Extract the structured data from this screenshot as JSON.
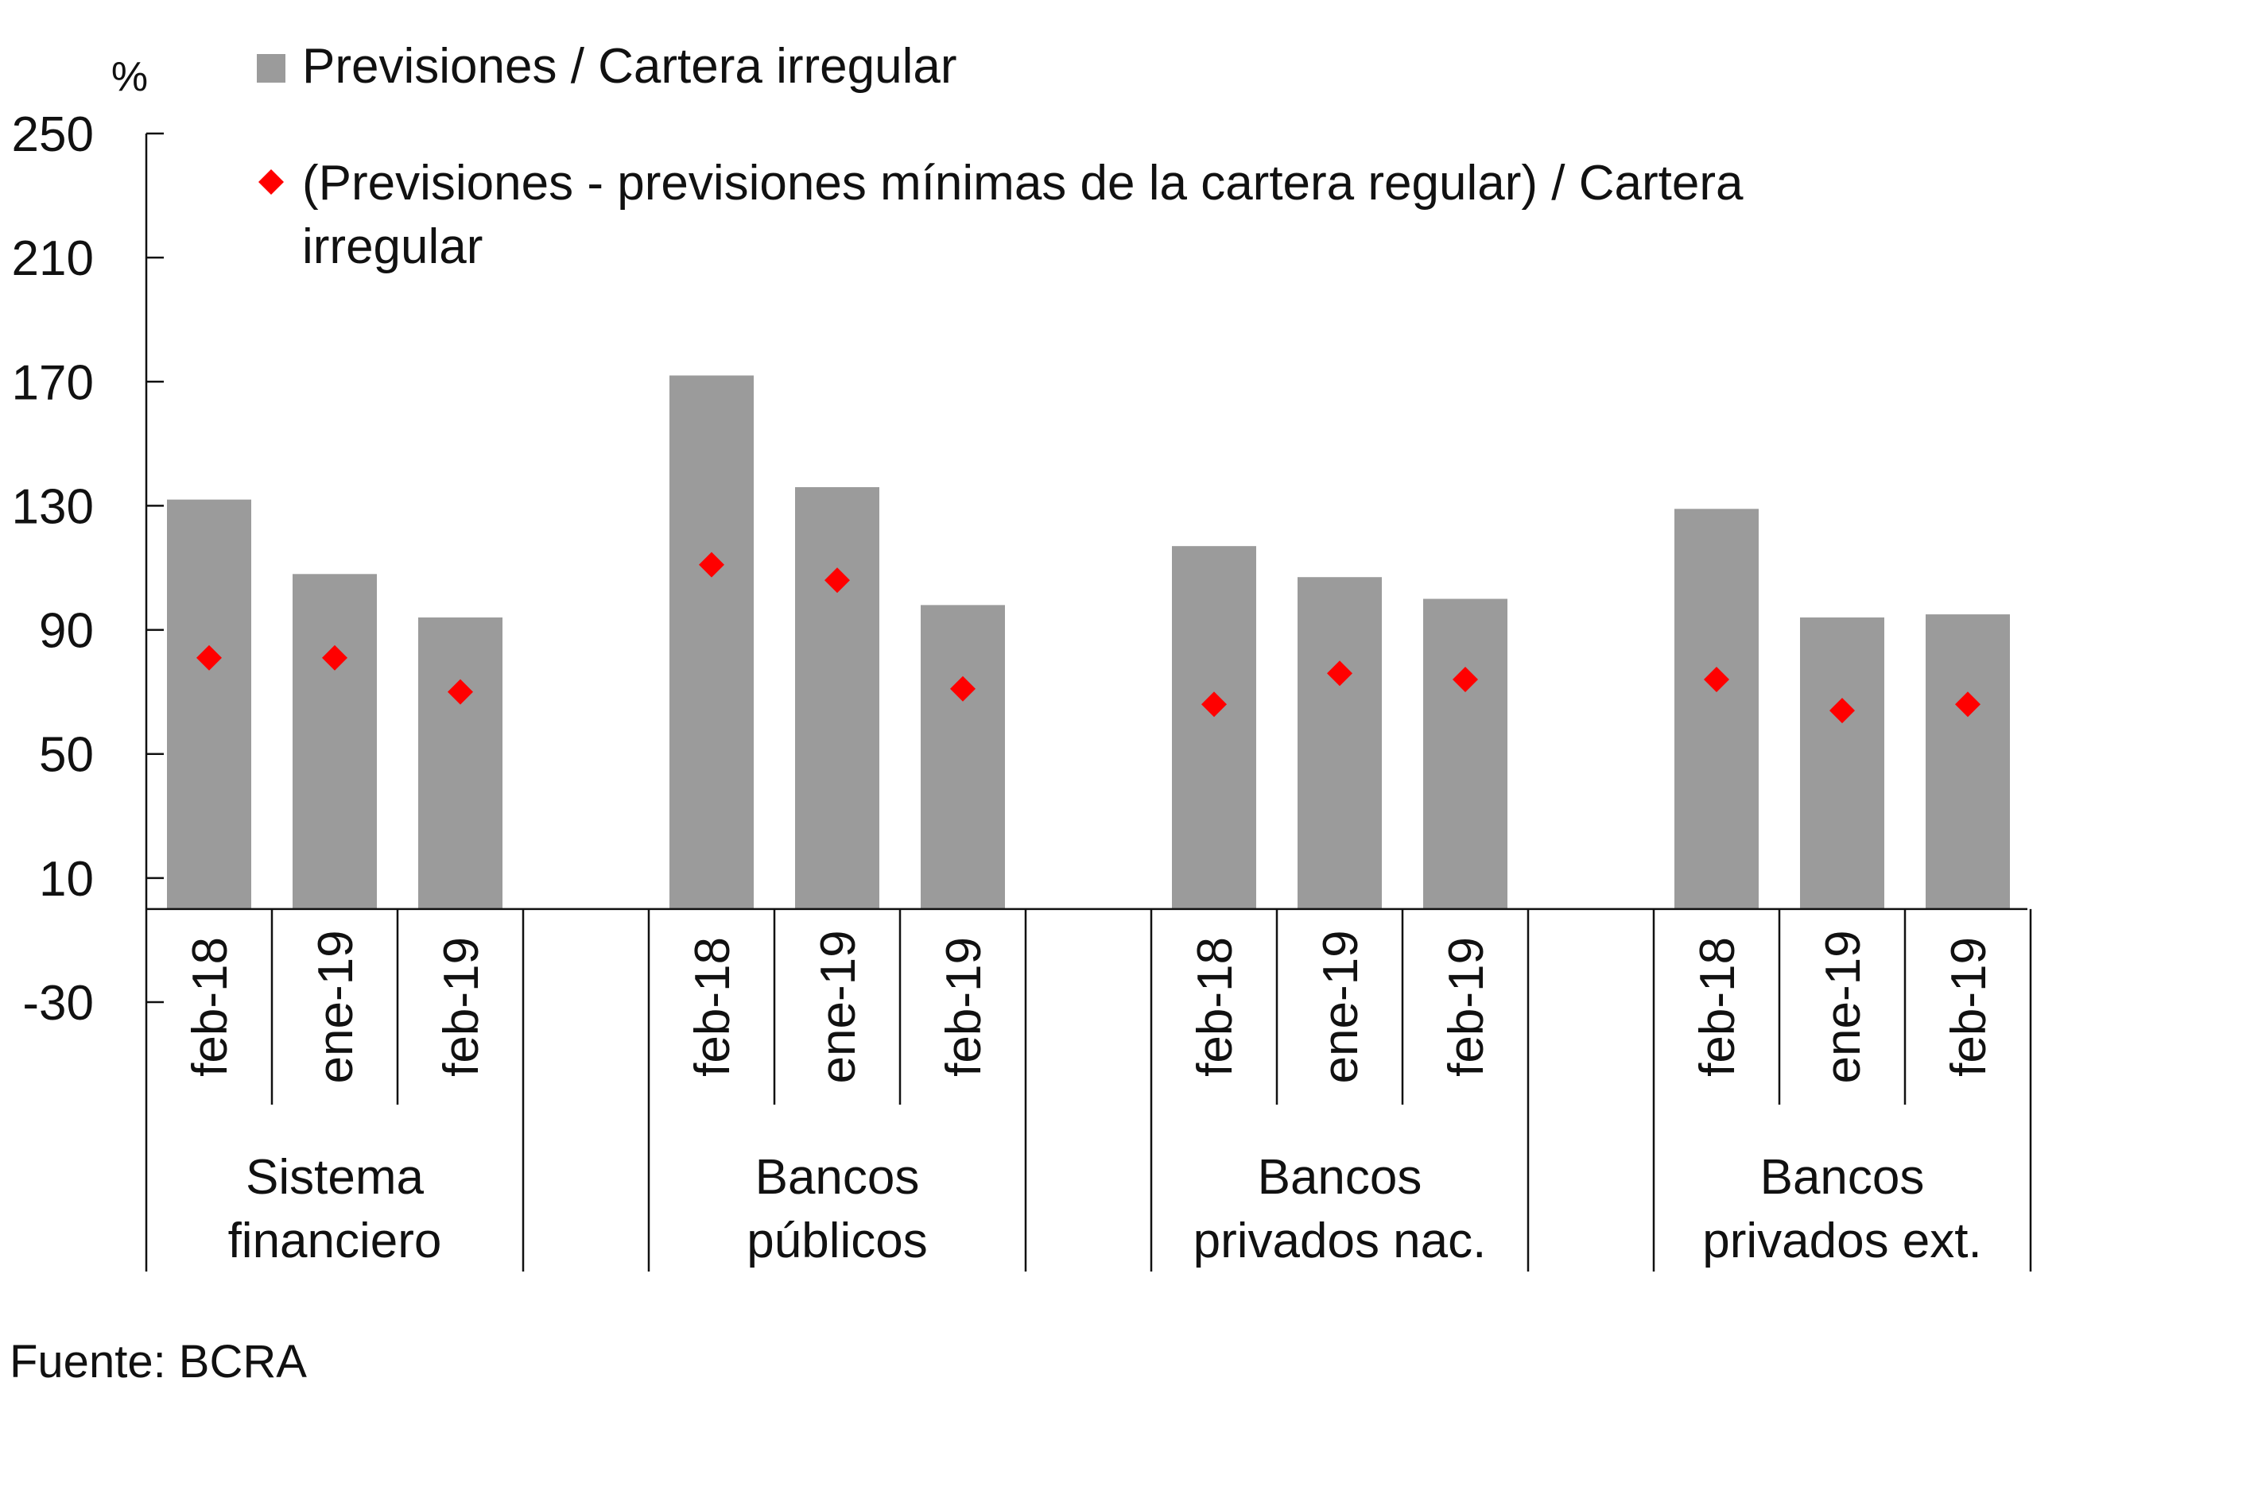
{
  "chart_data": {
    "type": "bar",
    "unit_label": "%",
    "ylim": [
      -30,
      250
    ],
    "yticks": [
      -30,
      10,
      50,
      90,
      130,
      170,
      210,
      250
    ],
    "groups": [
      {
        "label_lines": [
          "Sistema",
          "financiero"
        ],
        "categories": [
          "feb-18",
          "ene-19",
          "feb-19"
        ]
      },
      {
        "label_lines": [
          "Bancos",
          "públicos"
        ],
        "categories": [
          "feb-18",
          "ene-19",
          "feb-19"
        ]
      },
      {
        "label_lines": [
          "Bancos",
          "privados nac."
        ],
        "categories": [
          "feb-18",
          "ene-19",
          "feb-19"
        ]
      },
      {
        "label_lines": [
          "Bancos",
          "privados ext."
        ],
        "categories": [
          "feb-18",
          "ene-19",
          "feb-19"
        ]
      }
    ],
    "series": [
      {
        "name": "Previsiones / Cartera irregular",
        "kind": "bar",
        "color": "#9b9b9b",
        "values": [
          132,
          108,
          94,
          172,
          136,
          98,
          117,
          107,
          100,
          129,
          94,
          95
        ]
      },
      {
        "name_lines": [
          "(Previsiones - previsiones mínimas de la cartera regular) / Cartera",
          "irregular"
        ],
        "kind": "marker",
        "marker": "diamond",
        "color": "#ff0000",
        "values": [
          81,
          81,
          70,
          111,
          106,
          71,
          66,
          76,
          74,
          74,
          64,
          66
        ]
      }
    ],
    "grid": false,
    "legend_position": "top"
  },
  "source": "Fuente: BCRA"
}
